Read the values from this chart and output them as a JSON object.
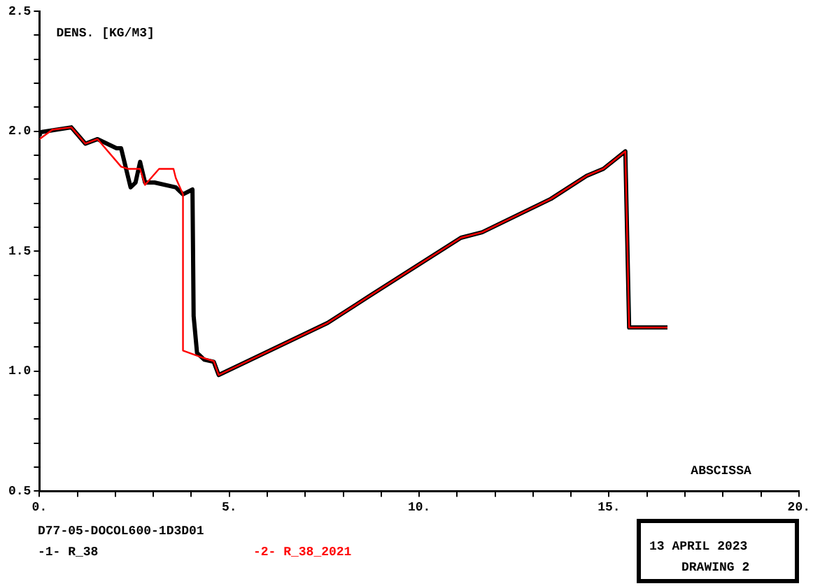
{
  "chart_data": {
    "type": "line",
    "ylabel": "DENS. [KG/M3]",
    "xlabel": "ABSCISSA",
    "annotations": [
      "D77-05-DOCOL600-1D3D01",
      "13 APRIL 2023",
      "DRAWING 2"
    ],
    "xlim": [
      0,
      20
    ],
    "ylim": [
      0.5,
      2.5
    ],
    "xticks": [
      {
        "value": 0,
        "label": "0."
      },
      {
        "value": 1,
        "label": null
      },
      {
        "value": 2,
        "label": null
      },
      {
        "value": 3,
        "label": null
      },
      {
        "value": 4,
        "label": null
      },
      {
        "value": 5,
        "label": "5."
      },
      {
        "value": 6,
        "label": null
      },
      {
        "value": 7,
        "label": null
      },
      {
        "value": 8,
        "label": null
      },
      {
        "value": 9,
        "label": null
      },
      {
        "value": 10,
        "label": "10."
      },
      {
        "value": 11,
        "label": null
      },
      {
        "value": 12,
        "label": null
      },
      {
        "value": 13,
        "label": null
      },
      {
        "value": 14,
        "label": null
      },
      {
        "value": 15,
        "label": "15."
      },
      {
        "value": 16,
        "label": null
      },
      {
        "value": 17,
        "label": null
      },
      {
        "value": 18,
        "label": null
      },
      {
        "value": 19,
        "label": null
      },
      {
        "value": 20,
        "label": "20."
      }
    ],
    "yticks": [
      0.5,
      {
        "value": 0.6,
        "label": null
      },
      {
        "value": 0.7,
        "label": null
      },
      {
        "value": 0.8,
        "label": null
      },
      {
        "value": 0.9,
        "label": null
      },
      {
        "value": 1.0,
        "label": "1.0"
      },
      {
        "value": 1.1,
        "label": null
      },
      {
        "value": 1.2,
        "label": null
      },
      {
        "value": 1.3,
        "label": null
      },
      {
        "value": 1.4,
        "label": null
      },
      1.5,
      {
        "value": 1.6,
        "label": null
      },
      {
        "value": 1.7,
        "label": null
      },
      {
        "value": 1.8,
        "label": null
      },
      {
        "value": 1.9,
        "label": null
      },
      {
        "value": 2.0,
        "label": "2.0"
      },
      {
        "value": 2.1,
        "label": null
      },
      {
        "value": 2.2,
        "label": null
      },
      {
        "value": 2.3,
        "label": null
      },
      {
        "value": 2.4,
        "label": null
      },
      2.5
    ],
    "grid": false,
    "marker": "none",
    "line_style": "solid",
    "series": [
      {
        "name": "-1- R_38",
        "color": "#000000",
        "x": [
          0,
          0.03,
          0.84,
          1.21,
          1.53,
          2.03,
          2.15,
          2.4,
          2.53,
          2.65,
          2.78,
          3.03,
          3.59,
          3.78,
          4.03,
          4.06,
          4.15,
          4.34,
          4.59,
          4.72,
          7.59,
          8.72,
          11.1,
          11.66,
          13.47,
          14.41,
          14.85,
          15.43,
          15.53,
          16.54
        ],
        "values": [
          1.98,
          1.996,
          2.016,
          1.948,
          1.967,
          1.929,
          1.929,
          1.766,
          1.786,
          1.872,
          1.786,
          1.786,
          1.766,
          1.737,
          1.757,
          1.23,
          1.076,
          1.048,
          1.039,
          0.984,
          1.201,
          1.316,
          1.556,
          1.579,
          1.718,
          1.814,
          1.843,
          1.916,
          1.182,
          1.182
        ]
      },
      {
        "name": "-2- R_38_2021",
        "color": "#ff0000",
        "x": [
          0,
          0.34,
          0.84,
          1.21,
          1.53,
          2.15,
          2.34,
          2.65,
          2.78,
          3.15,
          3.53,
          3.59,
          3.78,
          3.78,
          4.28,
          4.59,
          4.72,
          7.59,
          8.72,
          11.1,
          11.66,
          13.47,
          14.41,
          14.85,
          15.43,
          15.53,
          16.54
        ],
        "values": [
          1.967,
          2.006,
          2.016,
          1.948,
          1.967,
          1.852,
          1.843,
          1.843,
          1.776,
          1.843,
          1.843,
          1.805,
          1.737,
          1.086,
          1.057,
          1.042,
          0.984,
          1.201,
          1.316,
          1.556,
          1.579,
          1.718,
          1.814,
          1.843,
          1.916,
          1.182,
          1.182
        ]
      }
    ]
  }
}
